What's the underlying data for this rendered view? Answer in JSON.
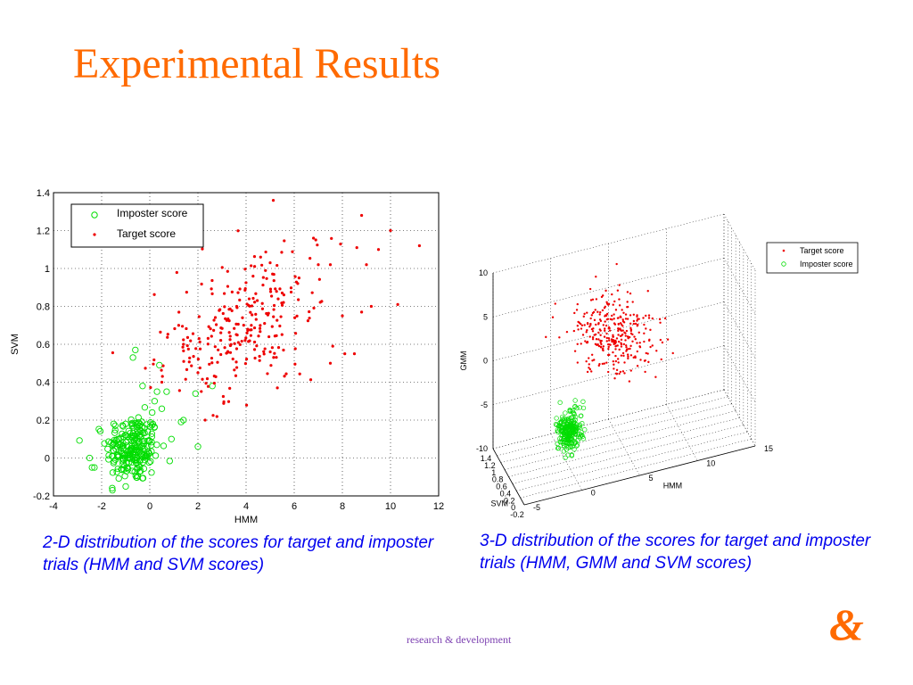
{
  "slide": {
    "title": "Experimental Results",
    "footer": "research & development",
    "logo_text": "&",
    "accent_color": "#ff6a00",
    "caption_color": "#0000ee"
  },
  "captions": {
    "left": "2-D distribution of the scores for target and imposter trials (HMM and SVM scores)",
    "right": "3-D distribution of the scores for target and imposter trials (HMM, GMM and SVM scores)"
  },
  "chart_data": [
    {
      "type": "scatter",
      "xlabel": "HMM",
      "ylabel": "SVM",
      "xlim": [
        -4,
        12
      ],
      "ylim": [
        -0.2,
        1.4
      ],
      "xticks": [
        "-4",
        "-2",
        "0",
        "2",
        "4",
        "6",
        "8",
        "10",
        "12"
      ],
      "yticks": [
        "-0.2",
        "0",
        "0.2",
        "0.4",
        "0.6",
        "0.8",
        "1",
        "1.2",
        "1.4"
      ],
      "grid": true,
      "legend_position": "top-left",
      "series": [
        {
          "name": "Imposter score",
          "marker": "circle",
          "color": "#00dd00",
          "cluster": {
            "count": 230,
            "center": [
              -0.7,
              0.05
            ],
            "spread": [
              0.55,
              0.09
            ]
          },
          "points": [
            [
              -2.5,
              0.0
            ],
            [
              -2.4,
              -0.05
            ],
            [
              -2.3,
              -0.05
            ],
            [
              -0.6,
              0.57
            ],
            [
              -0.7,
              0.53
            ],
            [
              0.4,
              0.49
            ],
            [
              0.3,
              0.35
            ],
            [
              0.7,
              0.35
            ],
            [
              0.2,
              0.3
            ],
            [
              1.3,
              0.19
            ],
            [
              1.4,
              0.2
            ],
            [
              2.0,
              0.06
            ],
            [
              2.6,
              0.38
            ],
            [
              1.9,
              0.34
            ],
            [
              -1.0,
              -0.15
            ],
            [
              -0.3,
              0.38
            ],
            [
              0.1,
              0.24
            ],
            [
              -1.5,
              0.18
            ],
            [
              0.5,
              0.26
            ],
            [
              0.9,
              0.1
            ]
          ]
        },
        {
          "name": "Target score",
          "marker": "dot",
          "color": "#ee0000",
          "cluster": {
            "count": 260,
            "center": [
              3.8,
              0.68
            ],
            "spread": [
              1.6,
              0.17
            ]
          },
          "points": [
            [
              8.8,
              1.28
            ],
            [
              10.0,
              1.2
            ],
            [
              11.2,
              1.12
            ],
            [
              9.5,
              1.1
            ],
            [
              8.6,
              1.11
            ],
            [
              6.8,
              1.16
            ],
            [
              7.0,
              1.02
            ],
            [
              7.5,
              1.02
            ],
            [
              9.0,
              1.02
            ],
            [
              10.3,
              0.81
            ],
            [
              9.2,
              0.8
            ],
            [
              8.8,
              0.77
            ],
            [
              8.0,
              0.75
            ],
            [
              7.6,
              0.59
            ],
            [
              8.1,
              0.55
            ],
            [
              8.5,
              0.55
            ],
            [
              7.5,
              0.5
            ],
            [
              0.5,
              0.4
            ],
            [
              5.3,
              0.37
            ],
            [
              2.3,
              0.2
            ],
            [
              1.2,
              0.7
            ],
            [
              1.4,
              0.6
            ],
            [
              2.0,
              0.45
            ],
            [
              6.2,
              0.95
            ],
            [
              5.0,
              1.03
            ]
          ]
        }
      ]
    },
    {
      "type": "scatter",
      "projection": "3d",
      "xlabel": "SVM",
      "ylabel": "HMM",
      "zlabel": "GMM",
      "xlim": [
        -0.2,
        1.4
      ],
      "ylim": [
        -5,
        15
      ],
      "zlim": [
        -10,
        10
      ],
      "xticks": [
        "1.4",
        "1.2",
        "1",
        "0.8",
        "0.6",
        "0.4",
        "0.2",
        "0",
        "-0.2"
      ],
      "yticks": [
        "-5",
        "0",
        "5",
        "10",
        "15"
      ],
      "zticks": [
        "-10",
        "-5",
        "0",
        "5",
        "10"
      ],
      "grid": true,
      "legend_position": "top-right",
      "series": [
        {
          "name": "Target score",
          "marker": "dot",
          "color": "#ee0000",
          "cluster": {
            "count": 320,
            "center": [
              0.6,
              4.0,
              3.0
            ],
            "spread": [
              0.17,
              1.6,
              2.0
            ]
          }
        },
        {
          "name": "Imposter score",
          "marker": "circle",
          "color": "#00dd00",
          "cluster": {
            "count": 230,
            "center": [
              0.05,
              -0.7,
              -4.0
            ],
            "spread": [
              0.09,
              0.55,
              1.1
            ]
          }
        }
      ]
    }
  ]
}
